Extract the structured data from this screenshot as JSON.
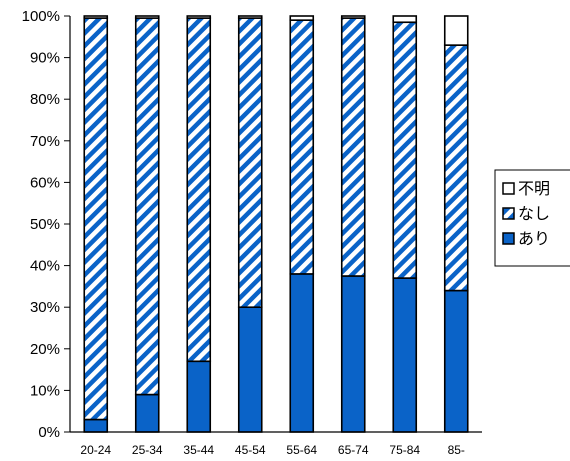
{
  "chart_data": {
    "type": "bar",
    "stacked": true,
    "categories": [
      "20-24",
      "25-34",
      "35-44",
      "45-54",
      "55-64",
      "65-74",
      "75-84",
      "85-"
    ],
    "series": [
      {
        "name": "あり",
        "values": [
          3,
          9,
          17,
          30,
          38,
          37.5,
          37,
          34
        ],
        "color": "#0a63c8",
        "pattern": "solid"
      },
      {
        "name": "なし",
        "values": [
          96.5,
          90.5,
          82.5,
          69.5,
          61,
          62,
          61.5,
          59
        ],
        "color": "#0a63c8",
        "pattern": "diagonal-stripes"
      },
      {
        "name": "不明",
        "values": [
          0.5,
          0.5,
          0.5,
          0.5,
          1,
          0.5,
          1.5,
          7
        ],
        "color": "#ffffff",
        "pattern": "solid"
      }
    ],
    "yticks": [
      "0%",
      "10%",
      "20%",
      "30%",
      "40%",
      "50%",
      "60%",
      "70%",
      "80%",
      "90%",
      "100%"
    ],
    "ylim": [
      0,
      100
    ],
    "legend": {
      "position": "right",
      "order": [
        "不明",
        "なし",
        "あり"
      ]
    },
    "grid": false
  }
}
